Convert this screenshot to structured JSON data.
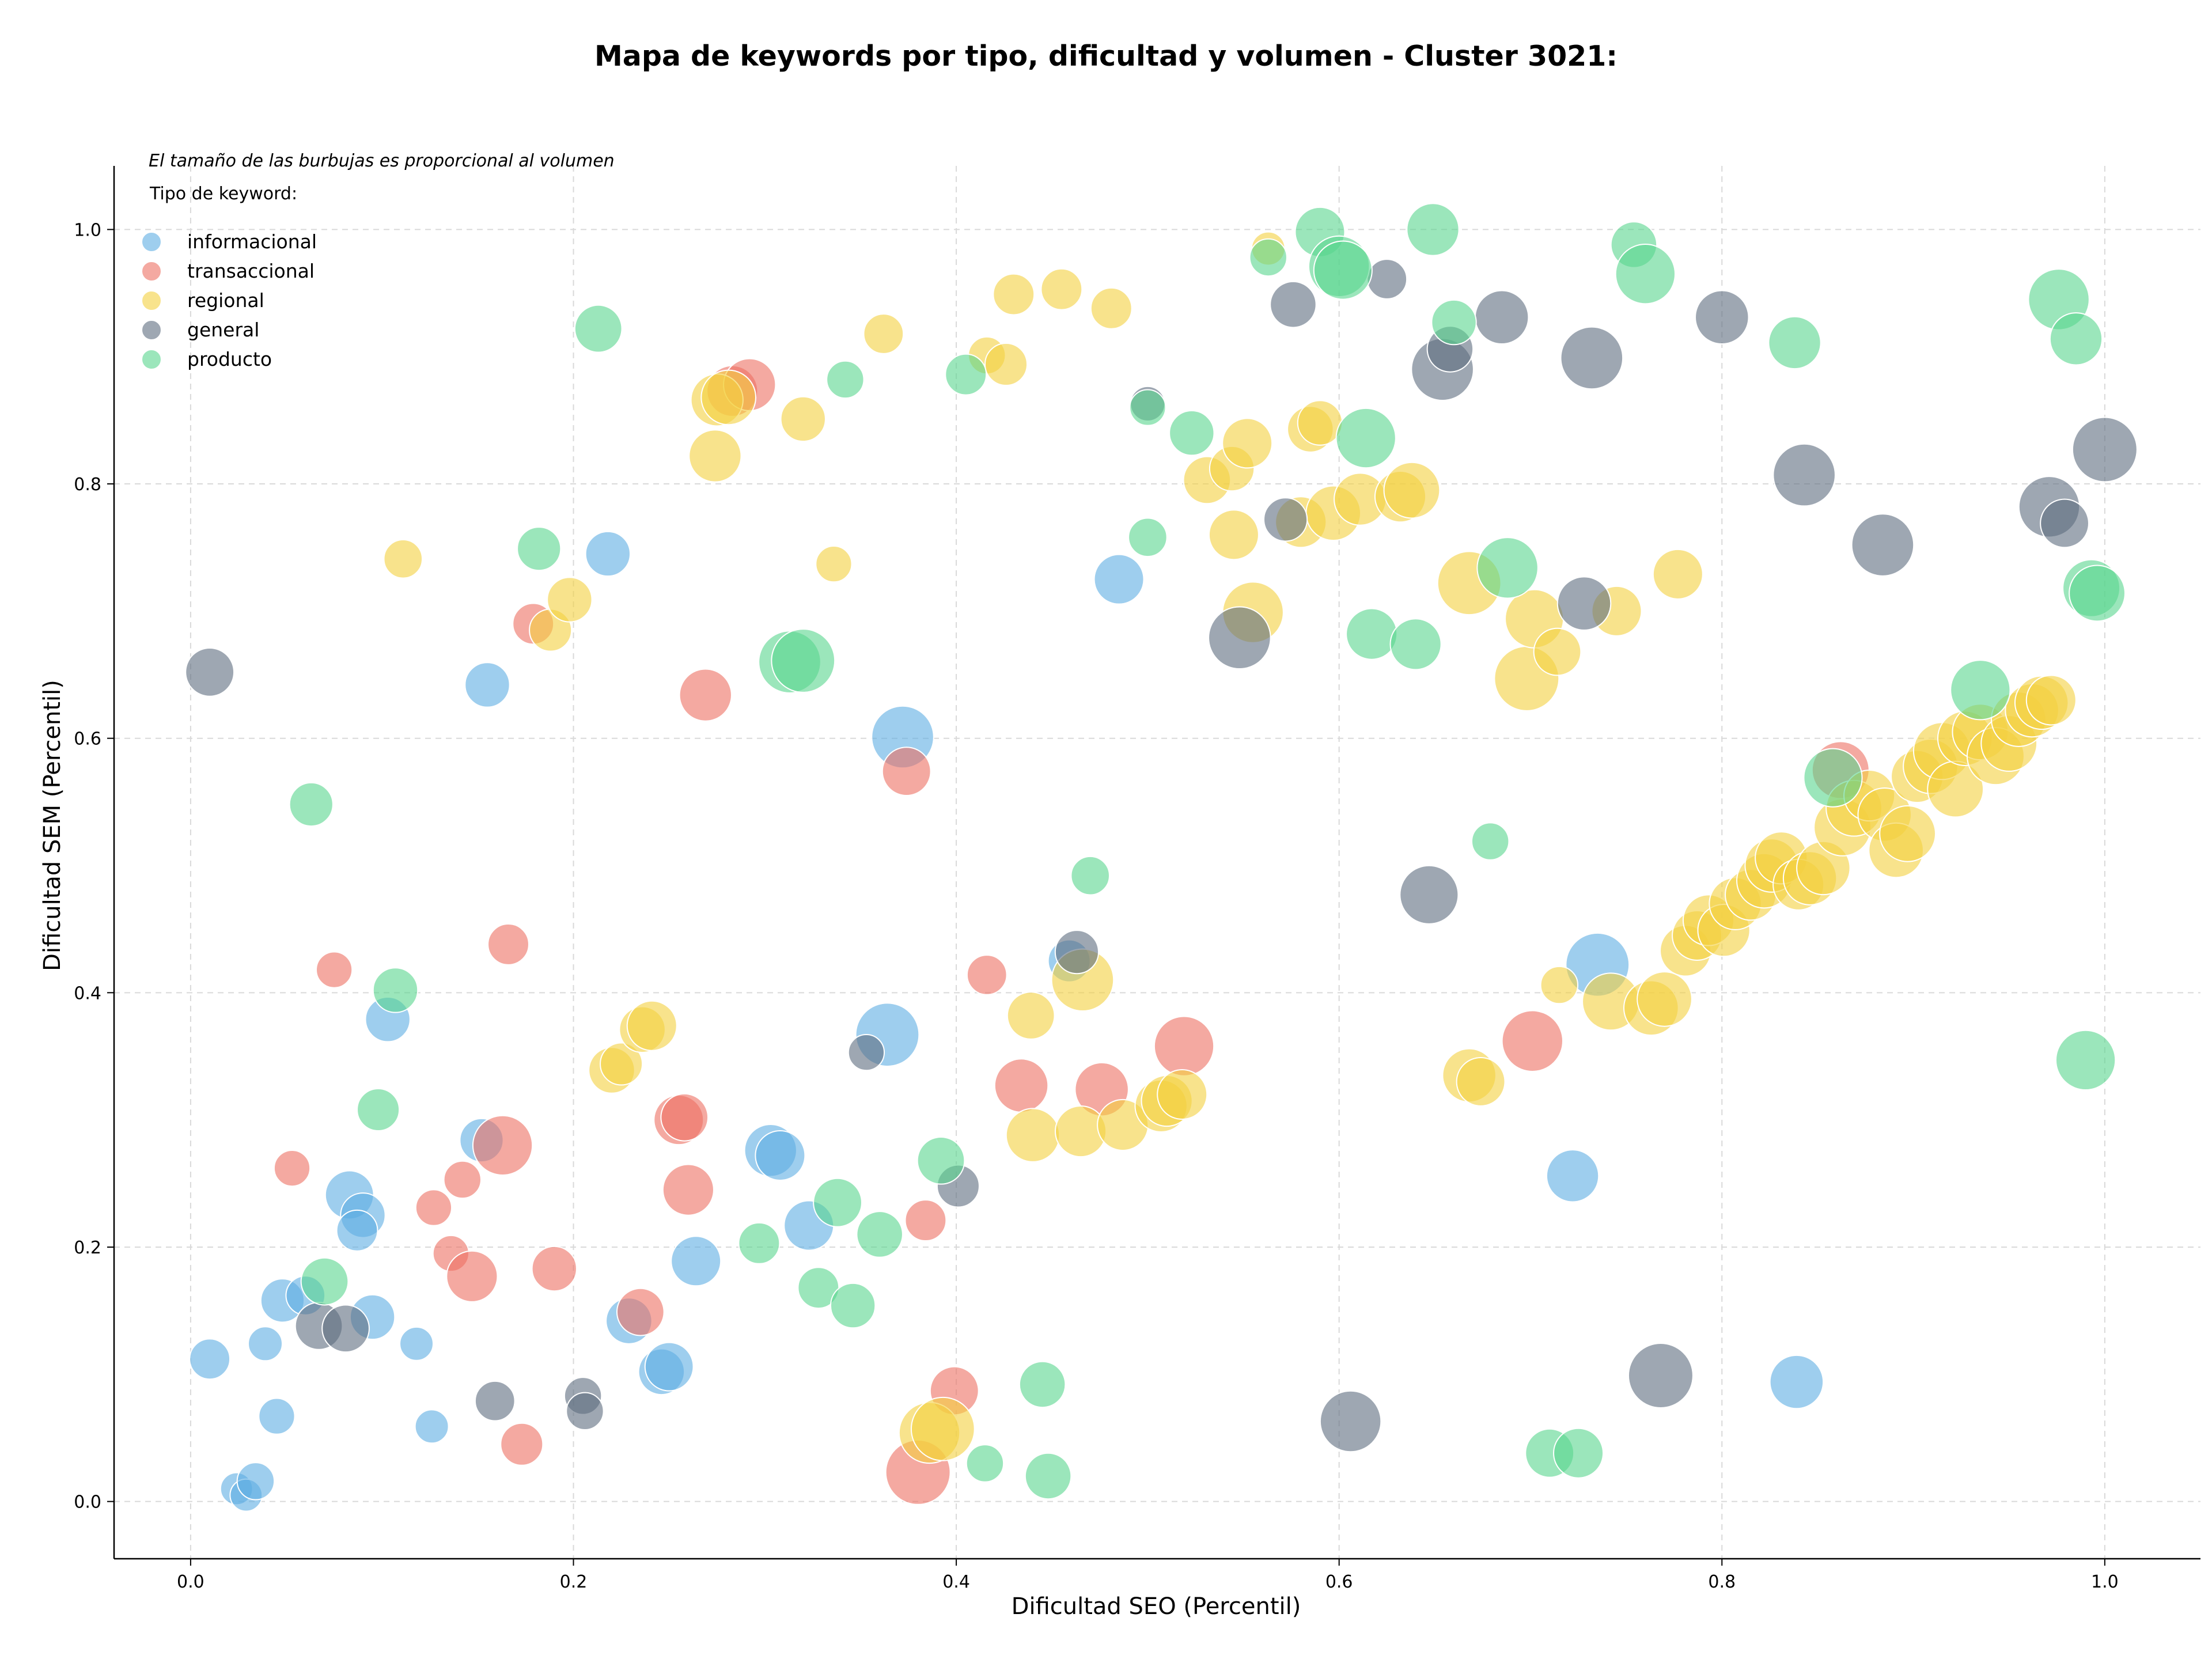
{
  "chart_data": {
    "type": "scatter",
    "title": "Mapa de keywords por tipo, dificultad y volumen - Cluster 3021:",
    "xlabel": "Dificultad SEO (Percentil)",
    "ylabel": "Dificultad SEM (Percentil)",
    "xlim": [
      -0.04,
      1.05
    ],
    "ylim": [
      -0.045,
      1.05
    ],
    "x_ticks": [
      0.0,
      0.2,
      0.4,
      0.6,
      0.8,
      1.0
    ],
    "y_ticks": [
      0.0,
      0.2,
      0.4,
      0.6,
      0.8,
      1.0
    ],
    "x_tick_labels": [
      "0.0",
      "0.2",
      "0.4",
      "0.6",
      "0.8",
      "1.0"
    ],
    "y_tick_labels": [
      "0.0",
      "0.2",
      "0.4",
      "0.6",
      "0.8",
      "1.0"
    ],
    "grid": true,
    "annotation": "El tamaño de las burbujas es proporcional al volumen",
    "legend_title": "Tipo de keyword:",
    "legend_position": "top-left",
    "size_note": "point size r = relative volume (0-1)",
    "series": [
      {
        "name": "informacional",
        "color": "#5dade2",
        "points": [
          [
            0.01,
            0.112,
            0.35
          ],
          [
            0.024,
            0.01,
            0.22
          ],
          [
            0.029,
            0.005,
            0.22
          ],
          [
            0.034,
            0.016,
            0.3
          ],
          [
            0.039,
            0.124,
            0.25
          ],
          [
            0.045,
            0.067,
            0.28
          ],
          [
            0.048,
            0.158,
            0.4
          ],
          [
            0.06,
            0.162,
            0.33
          ],
          [
            0.083,
            0.241,
            0.48
          ],
          [
            0.09,
            0.225,
            0.42
          ],
          [
            0.087,
            0.213,
            0.36
          ],
          [
            0.095,
            0.145,
            0.42
          ],
          [
            0.103,
            0.379,
            0.42
          ],
          [
            0.118,
            0.124,
            0.24
          ],
          [
            0.126,
            0.059,
            0.24
          ],
          [
            0.152,
            0.284,
            0.4
          ],
          [
            0.155,
            0.642,
            0.42
          ],
          [
            0.218,
            0.745,
            0.42
          ],
          [
            0.229,
            0.142,
            0.44
          ],
          [
            0.246,
            0.102,
            0.44
          ],
          [
            0.25,
            0.106,
            0.48
          ],
          [
            0.264,
            0.189,
            0.5
          ],
          [
            0.303,
            0.276,
            0.54
          ],
          [
            0.308,
            0.272,
            0.5
          ],
          [
            0.323,
            0.217,
            0.5
          ],
          [
            0.364,
            0.367,
            0.72
          ],
          [
            0.372,
            0.601,
            0.7
          ],
          [
            0.459,
            0.425,
            0.38
          ],
          [
            0.485,
            0.725,
            0.5
          ],
          [
            0.722,
            0.256,
            0.54
          ],
          [
            0.735,
            0.422,
            0.72
          ],
          [
            0.839,
            0.094,
            0.56
          ]
        ]
      },
      {
        "name": "transaccional",
        "color": "#ec7063",
        "points": [
          [
            0.053,
            0.262,
            0.28
          ],
          [
            0.075,
            0.418,
            0.28
          ],
          [
            0.127,
            0.231,
            0.28
          ],
          [
            0.136,
            0.195,
            0.28
          ],
          [
            0.142,
            0.253,
            0.3
          ],
          [
            0.147,
            0.177,
            0.52
          ],
          [
            0.163,
            0.28,
            0.66
          ],
          [
            0.166,
            0.438,
            0.36
          ],
          [
            0.173,
            0.045,
            0.38
          ],
          [
            0.179,
            0.69,
            0.36
          ],
          [
            0.19,
            0.183,
            0.42
          ],
          [
            0.235,
            0.149,
            0.46
          ],
          [
            0.255,
            0.3,
            0.5
          ],
          [
            0.258,
            0.302,
            0.46
          ],
          [
            0.26,
            0.245,
            0.52
          ],
          [
            0.269,
            0.634,
            0.54
          ],
          [
            0.283,
            0.873,
            0.52
          ],
          [
            0.292,
            0.878,
            0.54
          ],
          [
            0.374,
            0.574,
            0.48
          ],
          [
            0.38,
            0.023,
            0.74
          ],
          [
            0.384,
            0.221,
            0.36
          ],
          [
            0.399,
            0.087,
            0.48
          ],
          [
            0.416,
            0.414,
            0.34
          ],
          [
            0.434,
            0.327,
            0.56
          ],
          [
            0.476,
            0.324,
            0.56
          ],
          [
            0.519,
            0.358,
            0.66
          ],
          [
            0.701,
            0.362,
            0.68
          ],
          [
            0.862,
            0.575,
            0.62
          ]
        ]
      },
      {
        "name": "regional",
        "color": "#f4d03f",
        "points": [
          [
            0.111,
            0.741,
            0.32
          ],
          [
            0.188,
            0.685,
            0.38
          ],
          [
            0.198,
            0.709,
            0.42
          ],
          [
            0.22,
            0.339,
            0.44
          ],
          [
            0.225,
            0.344,
            0.38
          ],
          [
            0.236,
            0.371,
            0.44
          ],
          [
            0.241,
            0.374,
            0.5
          ],
          [
            0.275,
            0.866,
            0.54
          ],
          [
            0.281,
            0.868,
            0.58
          ],
          [
            0.274,
            0.822,
            0.54
          ],
          [
            0.32,
            0.851,
            0.42
          ],
          [
            0.336,
            0.737,
            0.28
          ],
          [
            0.362,
            0.918,
            0.34
          ],
          [
            0.386,
            0.054,
            0.68
          ],
          [
            0.393,
            0.057,
            0.72
          ],
          [
            0.416,
            0.901,
            0.3
          ],
          [
            0.426,
            0.894,
            0.38
          ],
          [
            0.43,
            0.949,
            0.36
          ],
          [
            0.439,
            0.382,
            0.46
          ],
          [
            0.44,
            0.288,
            0.56
          ],
          [
            0.455,
            0.953,
            0.36
          ],
          [
            0.465,
            0.291,
            0.52
          ],
          [
            0.466,
            0.41,
            0.7
          ],
          [
            0.481,
            0.938,
            0.36
          ],
          [
            0.487,
            0.296,
            0.52
          ],
          [
            0.507,
            0.311,
            0.54
          ],
          [
            0.51,
            0.315,
            0.52
          ],
          [
            0.518,
            0.32,
            0.5
          ],
          [
            0.531,
            0.803,
            0.46
          ],
          [
            0.544,
            0.812,
            0.42
          ],
          [
            0.545,
            0.76,
            0.5
          ],
          [
            0.552,
            0.832,
            0.5
          ],
          [
            0.555,
            0.699,
            0.68
          ],
          [
            0.563,
            0.985,
            0.24
          ],
          [
            0.58,
            0.77,
            0.52
          ],
          [
            0.585,
            0.843,
            0.44
          ],
          [
            0.59,
            0.848,
            0.42
          ],
          [
            0.597,
            0.777,
            0.58
          ],
          [
            0.611,
            0.788,
            0.54
          ],
          [
            0.632,
            0.79,
            0.52
          ],
          [
            0.638,
            0.795,
            0.6
          ],
          [
            0.668,
            0.722,
            0.72
          ],
          [
            0.668,
            0.335,
            0.56
          ],
          [
            0.674,
            0.33,
            0.48
          ],
          [
            0.698,
            0.647,
            0.74
          ],
          [
            0.702,
            0.694,
            0.64
          ],
          [
            0.714,
            0.668,
            0.46
          ],
          [
            0.715,
            0.406,
            0.3
          ],
          [
            0.742,
            0.393,
            0.62
          ],
          [
            0.745,
            0.7,
            0.5
          ],
          [
            0.763,
            0.388,
            0.58
          ],
          [
            0.77,
            0.395,
            0.58
          ],
          [
            0.777,
            0.729,
            0.5
          ],
          [
            0.781,
            0.433,
            0.52
          ],
          [
            0.787,
            0.445,
            0.5
          ],
          [
            0.793,
            0.457,
            0.52
          ],
          [
            0.801,
            0.449,
            0.54
          ],
          [
            0.807,
            0.47,
            0.54
          ],
          [
            0.815,
            0.477,
            0.52
          ],
          [
            0.822,
            0.488,
            0.58
          ],
          [
            0.826,
            0.5,
            0.56
          ],
          [
            0.831,
            0.506,
            0.54
          ],
          [
            0.84,
            0.485,
            0.52
          ],
          [
            0.846,
            0.49,
            0.56
          ],
          [
            0.853,
            0.498,
            0.56
          ],
          [
            0.863,
            0.53,
            0.62
          ],
          [
            0.869,
            0.545,
            0.6
          ],
          [
            0.877,
            0.555,
            0.52
          ],
          [
            0.885,
            0.54,
            0.56
          ],
          [
            0.891,
            0.512,
            0.58
          ],
          [
            0.897,
            0.525,
            0.6
          ],
          [
            0.902,
            0.57,
            0.54
          ],
          [
            0.909,
            0.578,
            0.58
          ],
          [
            0.915,
            0.59,
            0.62
          ],
          [
            0.922,
            0.56,
            0.6
          ],
          [
            0.927,
            0.6,
            0.58
          ],
          [
            0.935,
            0.605,
            0.6
          ],
          [
            0.943,
            0.586,
            0.62
          ],
          [
            0.95,
            0.596,
            0.6
          ],
          [
            0.955,
            0.615,
            0.58
          ],
          [
            0.962,
            0.622,
            0.56
          ],
          [
            0.967,
            0.628,
            0.56
          ],
          [
            0.972,
            0.63,
            0.5
          ]
        ]
      },
      {
        "name": "general",
        "color": "#5d6d7e",
        "points": [
          [
            0.01,
            0.652,
            0.48
          ],
          [
            0.067,
            0.138,
            0.46
          ],
          [
            0.081,
            0.136,
            0.46
          ],
          [
            0.159,
            0.079,
            0.34
          ],
          [
            0.205,
            0.083,
            0.3
          ],
          [
            0.206,
            0.071,
            0.3
          ],
          [
            0.353,
            0.353,
            0.28
          ],
          [
            0.401,
            0.248,
            0.38
          ],
          [
            0.463,
            0.432,
            0.4
          ],
          [
            0.5,
            0.863,
            0.26
          ],
          [
            0.548,
            0.679,
            0.7
          ],
          [
            0.572,
            0.772,
            0.4
          ],
          [
            0.576,
            0.941,
            0.44
          ],
          [
            0.606,
            0.063,
            0.68
          ],
          [
            0.625,
            0.961,
            0.34
          ],
          [
            0.647,
            0.477,
            0.64
          ],
          [
            0.654,
            0.89,
            0.7
          ],
          [
            0.658,
            0.906,
            0.44
          ],
          [
            0.685,
            0.931,
            0.56
          ],
          [
            0.728,
            0.706,
            0.56
          ],
          [
            0.732,
            0.899,
            0.7
          ],
          [
            0.768,
            0.099,
            0.74
          ],
          [
            0.8,
            0.931,
            0.56
          ],
          [
            0.843,
            0.807,
            0.7
          ],
          [
            0.884,
            0.752,
            0.7
          ],
          [
            0.971,
            0.782,
            0.68
          ],
          [
            0.979,
            0.769,
            0.48
          ],
          [
            1.0,
            0.827,
            0.74
          ]
        ]
      },
      {
        "name": "producto",
        "color": "#58d68d",
        "points": [
          [
            0.063,
            0.548,
            0.4
          ],
          [
            0.07,
            0.173,
            0.46
          ],
          [
            0.098,
            0.308,
            0.38
          ],
          [
            0.107,
            0.402,
            0.42
          ],
          [
            0.182,
            0.749,
            0.4
          ],
          [
            0.213,
            0.922,
            0.46
          ],
          [
            0.297,
            0.203,
            0.36
          ],
          [
            0.313,
            0.66,
            0.7
          ],
          [
            0.32,
            0.661,
            0.72
          ],
          [
            0.328,
            0.168,
            0.36
          ],
          [
            0.338,
            0.235,
            0.48
          ],
          [
            0.342,
            0.882,
            0.3
          ],
          [
            0.346,
            0.154,
            0.42
          ],
          [
            0.36,
            0.21,
            0.44
          ],
          [
            0.405,
            0.886,
            0.36
          ],
          [
            0.392,
            0.268,
            0.46
          ],
          [
            0.415,
            0.03,
            0.3
          ],
          [
            0.445,
            0.092,
            0.44
          ],
          [
            0.448,
            0.02,
            0.44
          ],
          [
            0.47,
            0.492,
            0.32
          ],
          [
            0.5,
            0.758,
            0.32
          ],
          [
            0.5,
            0.86,
            0.28
          ],
          [
            0.523,
            0.84,
            0.42
          ],
          [
            0.563,
            0.978,
            0.3
          ],
          [
            0.59,
            0.998,
            0.5
          ],
          [
            0.6,
            0.971,
            0.68
          ],
          [
            0.602,
            0.968,
            0.64
          ],
          [
            0.614,
            0.836,
            0.66
          ],
          [
            0.617,
            0.682,
            0.52
          ],
          [
            0.64,
            0.674,
            0.52
          ],
          [
            0.649,
            1.0,
            0.54
          ],
          [
            0.66,
            0.927,
            0.42
          ],
          [
            0.679,
            0.519,
            0.3
          ],
          [
            0.688,
            0.734,
            0.68
          ],
          [
            0.71,
            0.038,
            0.48
          ],
          [
            0.725,
            0.038,
            0.5
          ],
          [
            0.754,
            0.988,
            0.44
          ],
          [
            0.76,
            0.965,
            0.66
          ],
          [
            0.838,
            0.911,
            0.54
          ],
          [
            0.858,
            0.569,
            0.64
          ],
          [
            0.935,
            0.638,
            0.66
          ],
          [
            0.976,
            0.945,
            0.68
          ],
          [
            0.985,
            0.914,
            0.54
          ],
          [
            0.99,
            0.347,
            0.66
          ],
          [
            0.993,
            0.718,
            0.62
          ],
          [
            0.996,
            0.714,
            0.6
          ]
        ]
      }
    ]
  }
}
